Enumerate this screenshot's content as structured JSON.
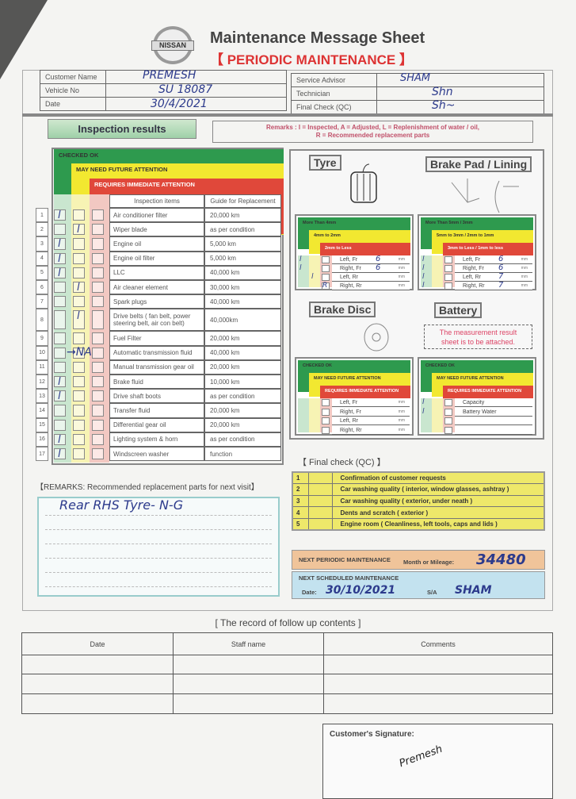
{
  "header": {
    "brand": "NISSAN",
    "title": "Maintenance Message Sheet",
    "subtitle": "【 PERIODIC MAINTENANCE 】"
  },
  "info": {
    "left": [
      {
        "label": "Customer Name",
        "value": "PREMESH"
      },
      {
        "label": "Vehicle No",
        "value": "SU 18087"
      },
      {
        "label": "Date",
        "value": "30/4/2021"
      }
    ],
    "right": [
      {
        "label": "Service Advisor",
        "value": "SHAM"
      },
      {
        "label": "Technician",
        "value": "Shn"
      },
      {
        "label": "Final Check (QC)",
        "value": "Sh~"
      }
    ]
  },
  "inspection": {
    "title": "Inspection results",
    "remarks_line1": "Remarks : I = Inspected, A = Adjusted, L = Replenishment of water / oil,",
    "remarks_line2": "R = Recommended replacement parts",
    "bands": {
      "ok": "CHECKED OK",
      "future": "MAY NEED FUTURE ATTENTION",
      "immediate": "REQUIRES IMMEDIATE ATTENTION"
    },
    "col_items": "Inspection items",
    "col_guide": "Guide for Replacement",
    "rows": [
      {
        "n": "1",
        "item": "Air conditioner filter",
        "guide": "20,000 km",
        "mark": "ok"
      },
      {
        "n": "2",
        "item": "Wiper blade",
        "guide": "as per condition",
        "mark": "future"
      },
      {
        "n": "3",
        "item": "Engine oil",
        "guide": "5,000 km",
        "mark": "ok"
      },
      {
        "n": "4",
        "item": "Engine oil filter",
        "guide": "5,000 km",
        "mark": "ok"
      },
      {
        "n": "5",
        "item": "LLC",
        "guide": "40,000 km",
        "mark": "ok"
      },
      {
        "n": "6",
        "item": "Air cleaner element",
        "guide": "30,000 km",
        "mark": "future"
      },
      {
        "n": "7",
        "item": "Spark plugs",
        "guide": "40,000 km",
        "mark": ""
      },
      {
        "n": "8",
        "item": "Drive belts ( fan belt, power steering belt, air con belt)",
        "guide": "40,000km",
        "mark": "future"
      },
      {
        "n": "9",
        "item": "Fuel Filter",
        "guide": "20,000 km",
        "mark": ""
      },
      {
        "n": "10",
        "item": "Automatic transmission fluid",
        "guide": "40,000 km",
        "mark": "NA",
        "note": "→NA"
      },
      {
        "n": "11",
        "item": "Manual transmission gear oil",
        "guide": "20,000 km",
        "mark": ""
      },
      {
        "n": "12",
        "item": "Brake fluid",
        "guide": "10,000 km",
        "mark": "ok"
      },
      {
        "n": "13",
        "item": "Drive shaft boots",
        "guide": "as per condition",
        "mark": "ok"
      },
      {
        "n": "14",
        "item": "Transfer fluid",
        "guide": "20,000 km",
        "mark": ""
      },
      {
        "n": "15",
        "item": "Differential gear oil",
        "guide": "20,000 km",
        "mark": ""
      },
      {
        "n": "16",
        "item": "Lighting system & horn",
        "guide": "as per condition",
        "mark": "ok"
      },
      {
        "n": "17",
        "item": "Windscreen washer",
        "guide": "function",
        "mark": "ok"
      }
    ]
  },
  "tyre": {
    "title": "Tyre",
    "bands": [
      "More Than 4mm",
      "4mm to 2mm",
      "2mm to Less"
    ],
    "unit": "mm",
    "rows": [
      {
        "pos": "Left, Fr",
        "value": "6",
        "mark": "ok"
      },
      {
        "pos": "Right, Fr",
        "value": "6",
        "mark": "ok"
      },
      {
        "pos": "Left, Rr",
        "value": "",
        "mark": "future"
      },
      {
        "pos": "Right, Rr",
        "value": "",
        "mark": "R"
      }
    ]
  },
  "brake_pad": {
    "title": "Brake Pad / Lining",
    "bands": [
      "More Than 5mm / 3mm",
      "5mm to 3mm / 2mm to 1mm",
      "3mm to Less / 1mm to less"
    ],
    "unit": "mm",
    "rows": [
      {
        "pos": "Left, Fr",
        "value": "6",
        "mark": "ok"
      },
      {
        "pos": "Right, Fr",
        "value": "6",
        "mark": "ok"
      },
      {
        "pos": "Left, Rr",
        "value": "7",
        "mark": "ok"
      },
      {
        "pos": "Right, Rr",
        "value": "7",
        "mark": "ok"
      }
    ]
  },
  "brake_disc": {
    "title": "Brake Disc",
    "bands": [
      "CHECKED OK",
      "MAY NEED FUTURE ATTENTION",
      "REQUIRES IMMEDIATE ATTENTION"
    ],
    "unit": "mm",
    "rows": [
      {
        "pos": "Left, Fr",
        "mark": ""
      },
      {
        "pos": "Right, Fr",
        "mark": ""
      },
      {
        "pos": "Left, Rr",
        "mark": ""
      },
      {
        "pos": "Right, Rr",
        "mark": ""
      }
    ]
  },
  "battery": {
    "title": "Battery",
    "note": "The measurement result sheet is to be attached.",
    "bands": [
      "CHECKED OK",
      "MAY NEED FUTURE ATTENTION",
      "REQUIRES IMMEDIATE ATTENTION"
    ],
    "rows": [
      {
        "pos": "Capacity",
        "mark": "ok"
      },
      {
        "pos": "Battery Water",
        "mark": "ok"
      },
      {
        "pos": "",
        "mark": ""
      },
      {
        "pos": "",
        "mark": ""
      }
    ]
  },
  "remarks_next": {
    "title": "【REMARKS: Recommended replacement parts for next visit】",
    "text": "Rear RHS Tyre- N-G"
  },
  "final_check": {
    "title": "【 Final check (QC) 】",
    "items": [
      {
        "n": "1",
        "text": "Confirmation of customer requests"
      },
      {
        "n": "2",
        "text": "Car washing quality ( interior, window glasses, ashtray )"
      },
      {
        "n": "3",
        "text": "Car washing quality ( exterior, under neath )"
      },
      {
        "n": "4",
        "text": "Dents and scratch ( exterior )"
      },
      {
        "n": "5",
        "text": "Engine room ( Cleanliness, left tools, caps and lids )"
      }
    ]
  },
  "next_periodic": {
    "label": "NEXT PERIODIC MAINTENANCE",
    "field": "Month or Mileage:",
    "value": "34480",
    "color": "#f0c49a"
  },
  "next_scheduled": {
    "label": "NEXT SCHEDULED MAINTENANCE",
    "date_label": "Date:",
    "date": "30/10/2021",
    "sa_label": "S/A",
    "sa": "SHAM",
    "color": "#c3e2ef"
  },
  "follow_up": {
    "title": "[ The record of follow up contents ]",
    "columns": [
      "Date",
      "Staff name",
      "Comments"
    ]
  },
  "signature": {
    "label": "Customer's Signature:",
    "value": "Premesh"
  },
  "colors": {
    "ok": "#2e9a4e",
    "future": "#f2e830",
    "immediate": "#e0483a",
    "ink": "#2c3a8c"
  }
}
